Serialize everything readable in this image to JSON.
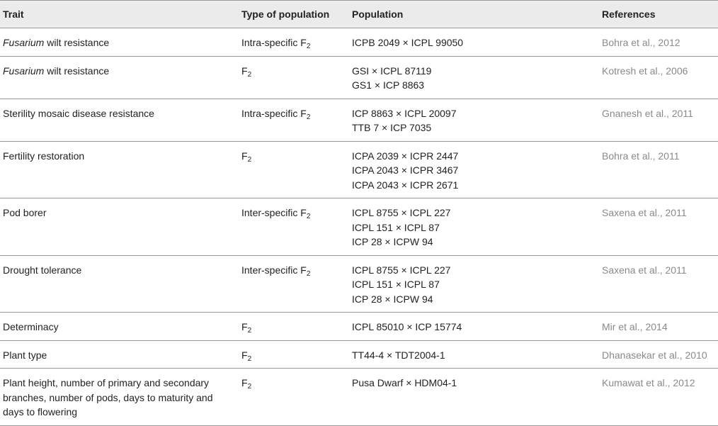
{
  "table": {
    "headers": [
      "Trait",
      "Type of population",
      "Population",
      "References"
    ],
    "rows": [
      {
        "trait_em": "Fusarium",
        "trait": " wilt resistance",
        "type": "Intra-specific F",
        "type_sub": "2",
        "population": [
          "ICPB 2049 × ICPL 99050"
        ],
        "reference": "Bohra et al., 2012"
      },
      {
        "trait_em": "Fusarium",
        "trait": " wilt resistance",
        "type": "F",
        "type_sub": "2",
        "population": [
          "GSI × ICPL 87119",
          "GS1 × ICP 8863"
        ],
        "reference": "Kotresh et al., 2006"
      },
      {
        "trait_em": "",
        "trait": "Sterility mosaic disease resistance",
        "type": "Intra-specific F",
        "type_sub": "2",
        "population": [
          "ICP 8863 × ICPL 20097",
          "TTB 7 × ICP 7035"
        ],
        "reference": "Gnanesh et al., 2011"
      },
      {
        "trait_em": "",
        "trait": "Fertility restoration",
        "type": "F",
        "type_sub": "2",
        "population": [
          "ICPA 2039 × ICPR 2447",
          "ICPA 2043 × ICPR 3467",
          "ICPA 2043 × ICPR 2671"
        ],
        "reference": "Bohra et al., 2011"
      },
      {
        "trait_em": "",
        "trait": "Pod borer",
        "type": "Inter-specific F",
        "type_sub": "2",
        "population": [
          "ICPL 8755 × ICPL 227",
          "ICPL 151 × ICPL 87",
          "ICP 28 × ICPW 94"
        ],
        "reference": "Saxena et al., 2011"
      },
      {
        "trait_em": "",
        "trait": "Drought tolerance",
        "type": "Inter-specific F",
        "type_sub": "2",
        "population": [
          "ICPL 8755 × ICPL 227",
          "ICPL 151 × ICPL 87",
          "ICP 28 × ICPW 94"
        ],
        "reference": "Saxena et al., 2011"
      },
      {
        "trait_em": "",
        "trait": "Determinacy",
        "type": "F",
        "type_sub": "2",
        "population": [
          "ICPL 85010 × ICP 15774"
        ],
        "reference": "Mir et al., 2014"
      },
      {
        "trait_em": "",
        "trait": "Plant type",
        "type": "F",
        "type_sub": "2",
        "population": [
          "TT44-4 × TDT2004-1"
        ],
        "reference": "Dhanasekar et al., 2010"
      },
      {
        "trait_em": "",
        "trait": "Plant height, number of primary and secondary branches, number of pods, days to maturity and days to flowering",
        "type": "F",
        "type_sub": "2",
        "population": [
          "Pusa Dwarf × HDM04-1"
        ],
        "reference": "Kumawat et al., 2012"
      }
    ]
  }
}
